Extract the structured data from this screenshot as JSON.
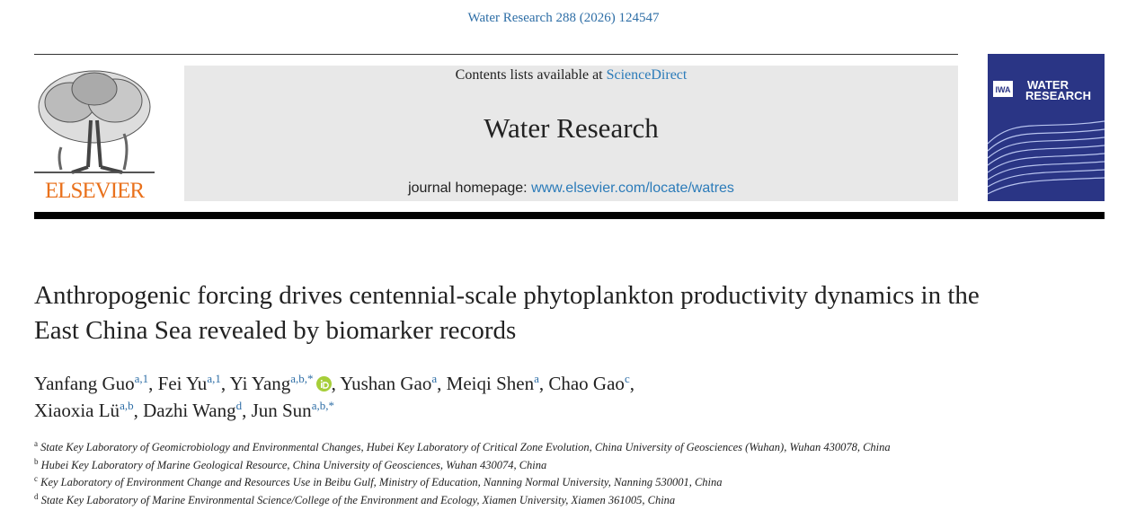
{
  "citation": "Water Research 288 (2026) 124547",
  "header": {
    "publisher": "ELSEVIER",
    "contents_prefix": "Contents lists available at",
    "contents_link": "ScienceDirect",
    "journal": "Water Research",
    "homepage_prefix": "journal homepage:",
    "homepage_link": "www.elsevier.com/locate/watres",
    "cover_logo": "IWA",
    "cover_title": [
      "WATER",
      "RESEARCH"
    ]
  },
  "title": "Anthropogenic forcing drives centennial-scale phytoplankton productivity dynamics in the East China Sea revealed by biomarker records",
  "author_separator": ",",
  "authors": [
    {
      "name": "Yanfang Guo",
      "sup": "a,1"
    },
    {
      "name": "Fei Yu",
      "sup": "a,1"
    },
    {
      "name": "Yi Yang",
      "sup": "a,b,*",
      "orcid": true
    },
    {
      "name": "Yushan Gao",
      "sup": "a"
    },
    {
      "name": "Meiqi Shen",
      "sup": "a"
    },
    {
      "name": "Chao Gao",
      "sup": "c",
      "break_after": true
    },
    {
      "name": "Xiaoxia Lü",
      "sup": "a,b"
    },
    {
      "name": "Dazhi Wang",
      "sup": "d"
    },
    {
      "name": "Jun Sun",
      "sup": "a,b,*"
    }
  ],
  "affiliations": [
    {
      "label": "a",
      "text": "State Key Laboratory of Geomicrobiology and Environmental Changes, Hubei Key Laboratory of Critical Zone Evolution, China University of Geosciences (Wuhan), Wuhan 430078, China"
    },
    {
      "label": "b",
      "text": "Hubei Key Laboratory of Marine Geological Resource, China University of Geosciences, Wuhan 430074, China"
    },
    {
      "label": "c",
      "text": "Key Laboratory of Environment Change and Resources Use in Beibu Gulf, Ministry of Education, Nanning Normal University, Nanning 530001, China"
    },
    {
      "label": "d",
      "text": "State Key Laboratory of Marine Environmental Science/College of the Environment and Ecology, Xiamen University, Xiamen 361005, China"
    }
  ]
}
